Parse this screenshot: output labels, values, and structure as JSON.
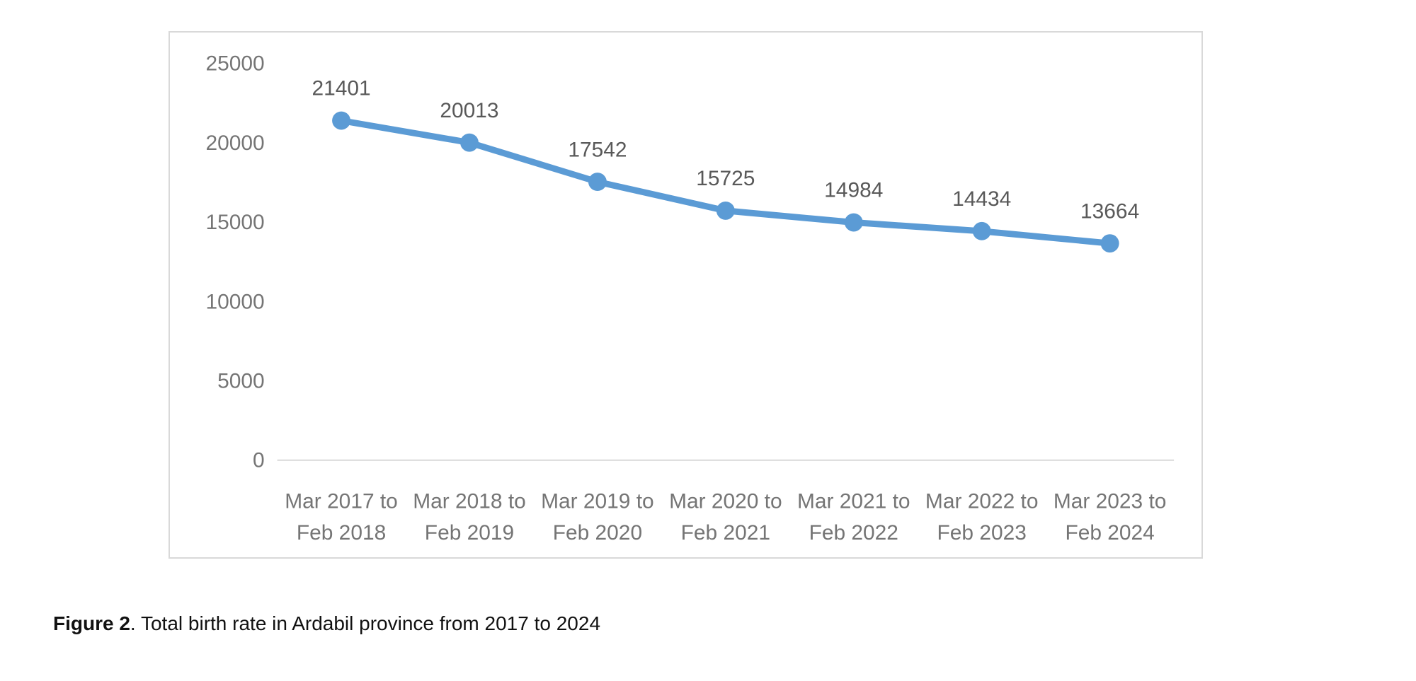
{
  "caption": {
    "label": "Figure 2",
    "text": ". Total birth rate in Ardabil province from 2017 to 2024"
  },
  "chart_data": {
    "type": "line",
    "title": "",
    "xlabel": "",
    "ylabel": "",
    "categories": [
      "Mar 2017 to Feb 2018",
      "Mar 2018 to Feb 2019",
      "Mar 2019 to Feb 2020",
      "Mar 2020 to Feb 2021",
      "Mar 2021 to Feb 2022",
      "Mar 2022 to Feb 2023",
      "Mar 2023 to Feb 2024"
    ],
    "category_label_lines": [
      [
        "Mar 2017 to",
        "Feb 2018"
      ],
      [
        "Mar 2018 to",
        "Feb 2019"
      ],
      [
        "Mar 2019 to",
        "Feb 2020"
      ],
      [
        "Mar 2020 to",
        "Feb 2021"
      ],
      [
        "Mar 2021 to",
        "Feb 2022"
      ],
      [
        "Mar 2022 to",
        "Feb 2023"
      ],
      [
        "Mar 2023 to",
        "Feb 2024"
      ]
    ],
    "values": [
      21401,
      20013,
      17542,
      15725,
      14984,
      14434,
      13664
    ],
    "data_labels": [
      21401,
      20013,
      17542,
      15725,
      14984,
      14434,
      13664
    ],
    "ylim": [
      0,
      25000
    ],
    "yticks": [
      0,
      5000,
      10000,
      15000,
      20000,
      25000
    ],
    "grid": false,
    "legend": "none",
    "colors": {
      "line": "#5b9bd5",
      "marker": "#5b9bd5",
      "data_label": "#595959",
      "axis_label": "#757575",
      "axis_line": "#d9d9d9",
      "panel_border": "#d9d9d9"
    }
  }
}
